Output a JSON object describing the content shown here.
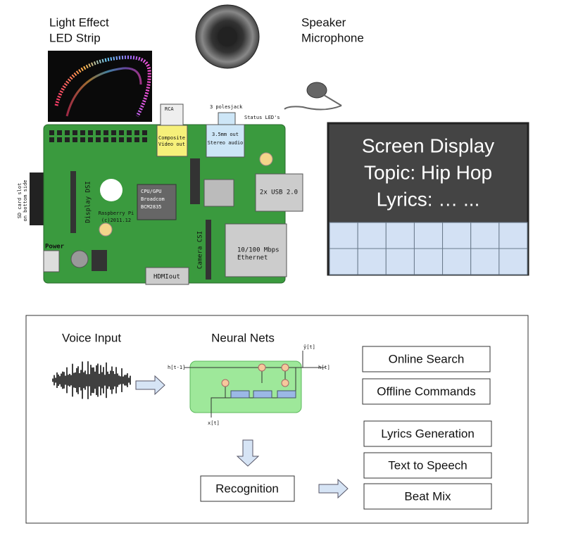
{
  "led": {
    "line1": "Light Effect",
    "line2": "LED Strip"
  },
  "speaker": {
    "line1": "Speaker",
    "line2": "Microphone"
  },
  "board": {
    "rca": "RCA",
    "composite": [
      "Composite",
      "Video out"
    ],
    "jack": "3 polesjack",
    "status": "Status LED's",
    "audio": [
      "3.5mm out",
      "Stereo audio"
    ],
    "cpu": [
      "CPU/GPU",
      "Broadcom",
      "BCM2835"
    ],
    "usb": "2x USB 2.0",
    "ethernet": [
      "10/100 Mbps",
      "Ethernet"
    ],
    "hdmi": "HDMIout",
    "dsi": "Display DSI",
    "csi": "Camera CSI",
    "power": "Power",
    "pi": [
      "Raspberry Pi",
      "(c)2011.12"
    ],
    "sd": [
      "SD card slot",
      "on bottom side"
    ]
  },
  "screen": {
    "lines": [
      "Screen Display",
      "Topic: Hip Hop",
      "Lyrics: … ..."
    ]
  },
  "pipeline": {
    "voice": "Voice Input",
    "nets": "Neural Nets",
    "recognition": "Recognition",
    "lstm": {
      "h_prev": "h[t-1]",
      "h": "h[t]",
      "x": "x[t]",
      "y": "ŷ[t]"
    },
    "services": [
      "Online Search",
      "Offline Commands"
    ],
    "outputs": [
      "Lyrics Generation",
      "Text to Speech",
      "Beat Mix"
    ]
  }
}
